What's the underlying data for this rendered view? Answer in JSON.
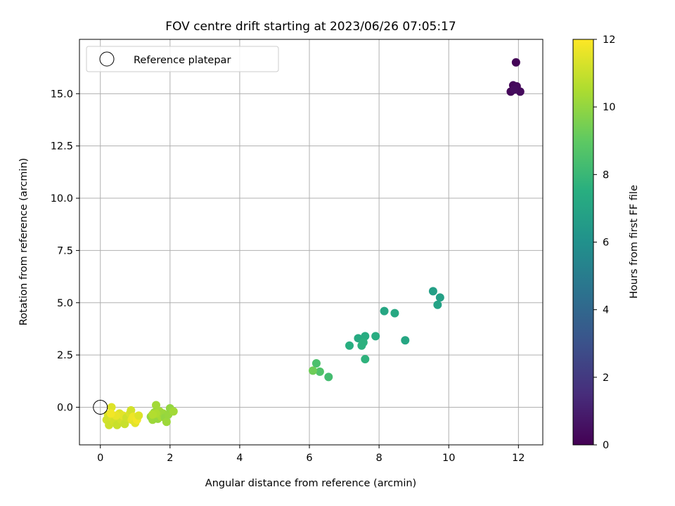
{
  "chart_data": {
    "type": "scatter",
    "title": "FOV centre drift starting at 2023/06/26 07:05:17",
    "xlabel": "Angular distance from reference (arcmin)",
    "ylabel": "Rotation from reference (arcmin)",
    "xlim": [
      -0.6,
      12.7
    ],
    "ylim": [
      -1.8,
      17.6
    ],
    "xticks": [
      0,
      2,
      4,
      6,
      8,
      10,
      12
    ],
    "xtick_labels": [
      "0",
      "2",
      "4",
      "6",
      "8",
      "10",
      "12"
    ],
    "yticks": [
      0.0,
      2.5,
      5.0,
      7.5,
      10.0,
      12.5,
      15.0
    ],
    "ytick_labels": [
      "0.0",
      "2.5",
      "5.0",
      "7.5",
      "10.0",
      "12.5",
      "15.0"
    ],
    "grid": true,
    "legend": {
      "placement": "top-left",
      "entries": [
        "Reference platepar"
      ]
    },
    "reference_point": {
      "x": 0,
      "y": 0,
      "label": "Reference platepar"
    },
    "colorbar": {
      "label": "Hours from first FF file",
      "range": [
        0,
        12
      ],
      "ticks": [
        0,
        2,
        4,
        6,
        8,
        10,
        12
      ],
      "tick_labels": [
        "0",
        "2",
        "4",
        "6",
        "8",
        "10",
        "12"
      ],
      "colormap": "viridis"
    },
    "points": [
      {
        "x": 11.93,
        "y": 16.5,
        "h": 0.1
      },
      {
        "x": 11.85,
        "y": 15.4,
        "h": 0.2
      },
      {
        "x": 11.78,
        "y": 15.1,
        "h": 0.2
      },
      {
        "x": 11.95,
        "y": 15.35,
        "h": 0.3
      },
      {
        "x": 12.05,
        "y": 15.1,
        "h": 0.3
      },
      {
        "x": 11.88,
        "y": 15.2,
        "h": 0.4
      },
      {
        "x": 9.55,
        "y": 5.55,
        "h": 6.7
      },
      {
        "x": 9.75,
        "y": 5.25,
        "h": 6.8
      },
      {
        "x": 9.68,
        "y": 4.9,
        "h": 6.9
      },
      {
        "x": 8.15,
        "y": 4.6,
        "h": 7.1
      },
      {
        "x": 8.45,
        "y": 4.5,
        "h": 7.2
      },
      {
        "x": 7.4,
        "y": 3.3,
        "h": 7.3
      },
      {
        "x": 7.6,
        "y": 3.4,
        "h": 7.4
      },
      {
        "x": 7.9,
        "y": 3.4,
        "h": 7.4
      },
      {
        "x": 8.75,
        "y": 3.2,
        "h": 7.1
      },
      {
        "x": 7.15,
        "y": 2.95,
        "h": 7.5
      },
      {
        "x": 7.5,
        "y": 2.95,
        "h": 7.6
      },
      {
        "x": 7.55,
        "y": 3.1,
        "h": 7.6
      },
      {
        "x": 7.6,
        "y": 2.3,
        "h": 7.7
      },
      {
        "x": 6.2,
        "y": 2.1,
        "h": 8.5
      },
      {
        "x": 6.3,
        "y": 1.7,
        "h": 8.6
      },
      {
        "x": 6.55,
        "y": 1.45,
        "h": 8.3
      },
      {
        "x": 6.1,
        "y": 1.75,
        "h": 9.3
      },
      {
        "x": 1.6,
        "y": 0.1,
        "h": 10.3
      },
      {
        "x": 1.55,
        "y": -0.25,
        "h": 10.1
      },
      {
        "x": 1.45,
        "y": -0.45,
        "h": 10.0
      },
      {
        "x": 1.5,
        "y": -0.6,
        "h": 10.2
      },
      {
        "x": 1.65,
        "y": -0.55,
        "h": 10.1
      },
      {
        "x": 1.7,
        "y": -0.2,
        "h": 10.3
      },
      {
        "x": 1.75,
        "y": -0.45,
        "h": 10.4
      },
      {
        "x": 1.8,
        "y": -0.3,
        "h": 10.2
      },
      {
        "x": 1.85,
        "y": -0.5,
        "h": 10.0
      },
      {
        "x": 1.9,
        "y": -0.7,
        "h": 10.2
      },
      {
        "x": 1.95,
        "y": -0.35,
        "h": 10.1
      },
      {
        "x": 2.0,
        "y": -0.05,
        "h": 10.0
      },
      {
        "x": 2.1,
        "y": -0.2,
        "h": 10.3
      },
      {
        "x": 1.6,
        "y": -0.3,
        "h": 10.5
      },
      {
        "x": 1.5,
        "y": -0.35,
        "h": 10.6
      },
      {
        "x": 0.32,
        "y": 0.0,
        "h": 11.4
      },
      {
        "x": 0.22,
        "y": -0.35,
        "h": 11.3
      },
      {
        "x": 0.18,
        "y": -0.6,
        "h": 11.2
      },
      {
        "x": 0.25,
        "y": -0.85,
        "h": 11.1
      },
      {
        "x": 0.35,
        "y": -0.5,
        "h": 11.3
      },
      {
        "x": 0.4,
        "y": -0.7,
        "h": 11.2
      },
      {
        "x": 0.48,
        "y": -0.85,
        "h": 11.0
      },
      {
        "x": 0.55,
        "y": -0.3,
        "h": 11.4
      },
      {
        "x": 0.6,
        "y": -0.6,
        "h": 11.2
      },
      {
        "x": 0.65,
        "y": -0.4,
        "h": 11.5
      },
      {
        "x": 0.7,
        "y": -0.8,
        "h": 11.0
      },
      {
        "x": 0.75,
        "y": -0.5,
        "h": 11.1
      },
      {
        "x": 0.85,
        "y": -0.3,
        "h": 11.3
      },
      {
        "x": 0.88,
        "y": -0.15,
        "h": 11.2
      },
      {
        "x": 0.9,
        "y": -0.6,
        "h": 11.6
      },
      {
        "x": 0.95,
        "y": -0.45,
        "h": 11.7
      },
      {
        "x": 1.0,
        "y": -0.75,
        "h": 11.5
      },
      {
        "x": 1.05,
        "y": -0.6,
        "h": 11.8
      },
      {
        "x": 1.1,
        "y": -0.4,
        "h": 11.4
      },
      {
        "x": 0.45,
        "y": -0.4,
        "h": 11.6
      },
      {
        "x": 0.3,
        "y": -0.3,
        "h": 11.8
      }
    ]
  }
}
